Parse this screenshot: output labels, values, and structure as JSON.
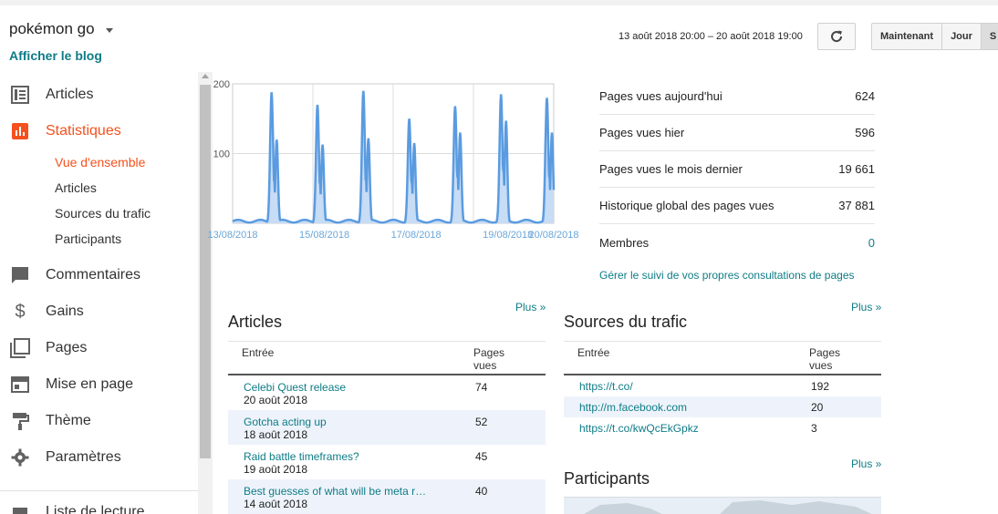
{
  "blog": {
    "title": "pokémon go",
    "view_blog": "Afficher le blog"
  },
  "sidebar": {
    "items": [
      {
        "label": "Articles",
        "icon": "articles-icon"
      },
      {
        "label": "Statistiques",
        "icon": "bar-chart-icon",
        "active": true
      },
      {
        "label": "Commentaires",
        "icon": "comment-icon"
      },
      {
        "label": "Gains",
        "icon": "dollar-icon"
      },
      {
        "label": "Pages",
        "icon": "pages-icon"
      },
      {
        "label": "Mise en page",
        "icon": "layout-icon"
      },
      {
        "label": "Thème",
        "icon": "paint-roller-icon"
      },
      {
        "label": "Paramètres",
        "icon": "gear-icon"
      },
      {
        "label": "Liste de lecture",
        "icon": "reading-list-icon"
      }
    ],
    "stats_sub": [
      "Vue d'ensemble",
      "Articles",
      "Sources du trafic",
      "Participants"
    ]
  },
  "header": {
    "date_range": "13 août 2018 20:00 – 20 août 2018 19:00",
    "buttons": [
      "Maintenant",
      "Jour",
      "S"
    ]
  },
  "chart_data": {
    "type": "area",
    "y_ticks": [
      "200",
      "100"
    ],
    "x_ticks": [
      "13/08/2018",
      "15/08/2018",
      "17/08/2018",
      "19/08/2018",
      "20/08/2018"
    ],
    "ylim": [
      0,
      200
    ],
    "color": "#5a9be0",
    "peaks": [
      {
        "day": 0.85,
        "values": [
          188,
          120
        ]
      },
      {
        "day": 1.85,
        "values": [
          170,
          113
        ]
      },
      {
        "day": 2.85,
        "values": [
          190,
          122
        ]
      },
      {
        "day": 3.85,
        "values": [
          150,
          115
        ]
      },
      {
        "day": 4.85,
        "values": [
          168,
          130
        ]
      },
      {
        "day": 5.85,
        "values": [
          185,
          147
        ]
      },
      {
        "day": 6.85,
        "values": [
          180,
          130
        ]
      }
    ]
  },
  "stats": [
    {
      "label": "Pages vues aujourd'hui",
      "value": "624"
    },
    {
      "label": "Pages vues hier",
      "value": "596"
    },
    {
      "label": "Pages vues le mois dernier",
      "value": "19 661"
    },
    {
      "label": "Historique global des pages vues",
      "value": "37 881"
    },
    {
      "label": "Membres",
      "value": "0"
    }
  ],
  "manage_link": "Gérer le suivi de vos propres consultations de pages",
  "articles": {
    "title": "Articles",
    "more": "Plus »",
    "col1": "Entrée",
    "col2a": "Pages",
    "col2b": "vues",
    "rows": [
      {
        "title": "Celebi Quest release",
        "date": "20 août 2018",
        "views": "74"
      },
      {
        "title": "Gotcha acting up",
        "date": "18 août 2018",
        "views": "52"
      },
      {
        "title": "Raid battle timeframes?",
        "date": "19 août 2018",
        "views": "45"
      },
      {
        "title": "Best guesses of what will be meta r…",
        "date": "14 août 2018",
        "views": "40"
      }
    ]
  },
  "traffic": {
    "title": "Sources du trafic",
    "more": "Plus »",
    "col1": "Entrée",
    "col2a": "Pages",
    "col2b": "vues",
    "rows": [
      {
        "source": "https://t.co/",
        "views": "192"
      },
      {
        "source": "http://m.facebook.com",
        "views": "20"
      },
      {
        "source": "https://t.co/kwQcEkGpkz",
        "views": "3"
      }
    ]
  },
  "participants": {
    "title": "Participants",
    "more": "Plus »"
  }
}
